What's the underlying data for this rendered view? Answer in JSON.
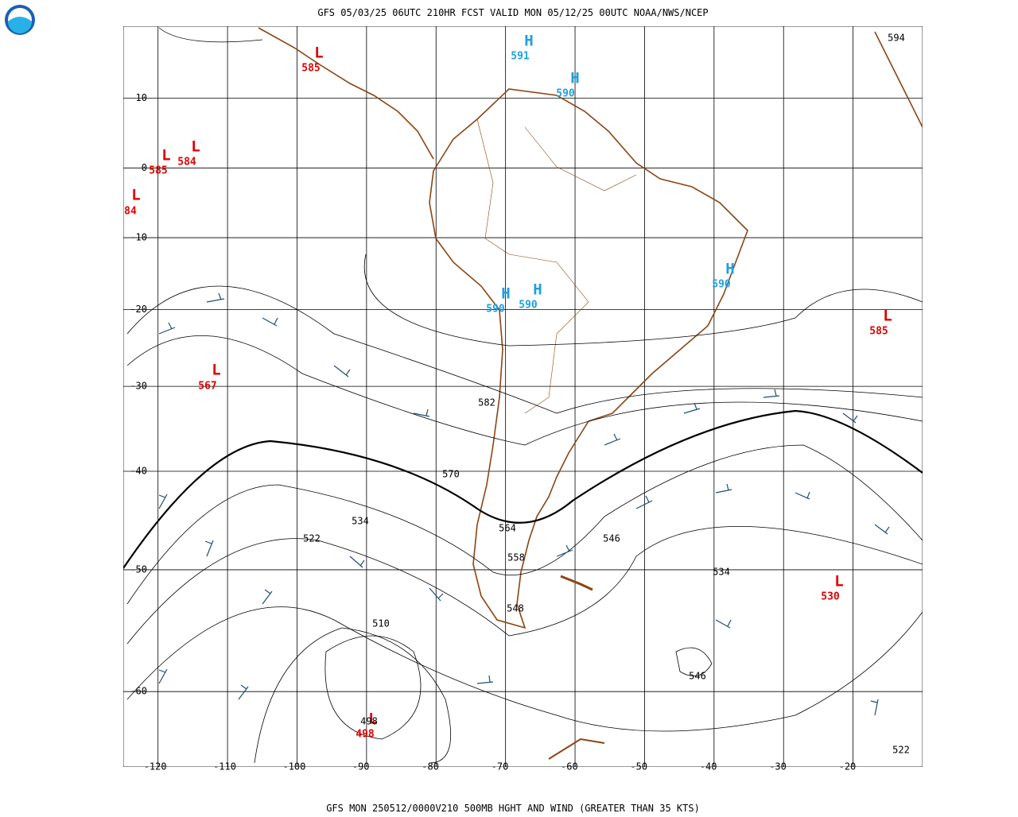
{
  "header": {
    "title": "GFS 05/03/25 06UTC 210HR FCST VALID MON 05/12/25 00UTC NOAA/NWS/NCEP"
  },
  "footer": {
    "caption": "GFS MON 250512/0000V210 500MB HGHT AND WIND (GREATER THAN 35 KTS)"
  },
  "map": {
    "xlim": [
      -125,
      -10
    ],
    "ylim": [
      -65,
      20
    ],
    "xticks": [
      -120,
      -110,
      -100,
      -90,
      -80,
      -70,
      -60,
      -50,
      -40,
      -30,
      -20
    ],
    "yticks": [
      10,
      0,
      -10,
      -20,
      -30,
      -40,
      -50,
      -60
    ],
    "centers": [
      {
        "letter": "L",
        "value": 585
      },
      {
        "letter": "H",
        "value": 591
      },
      {
        "letter": "H",
        "value": 590
      },
      {
        "letter": "L",
        "value": 585
      },
      {
        "letter": "L",
        "value": 584
      },
      {
        "letter": "L",
        "value": 84
      },
      {
        "letter": "H",
        "value": 590
      },
      {
        "letter": "H",
        "value": 590
      },
      {
        "letter": "H",
        "value": 590
      },
      {
        "letter": "L",
        "value": 585
      },
      {
        "letter": "L",
        "value": 567
      },
      {
        "letter": "L",
        "value": 530
      },
      {
        "letter": "L",
        "value": 498
      }
    ],
    "contour_labels": [
      594,
      582,
      570,
      534,
      564,
      546,
      522,
      558,
      534,
      548,
      510,
      546,
      498,
      522
    ]
  }
}
